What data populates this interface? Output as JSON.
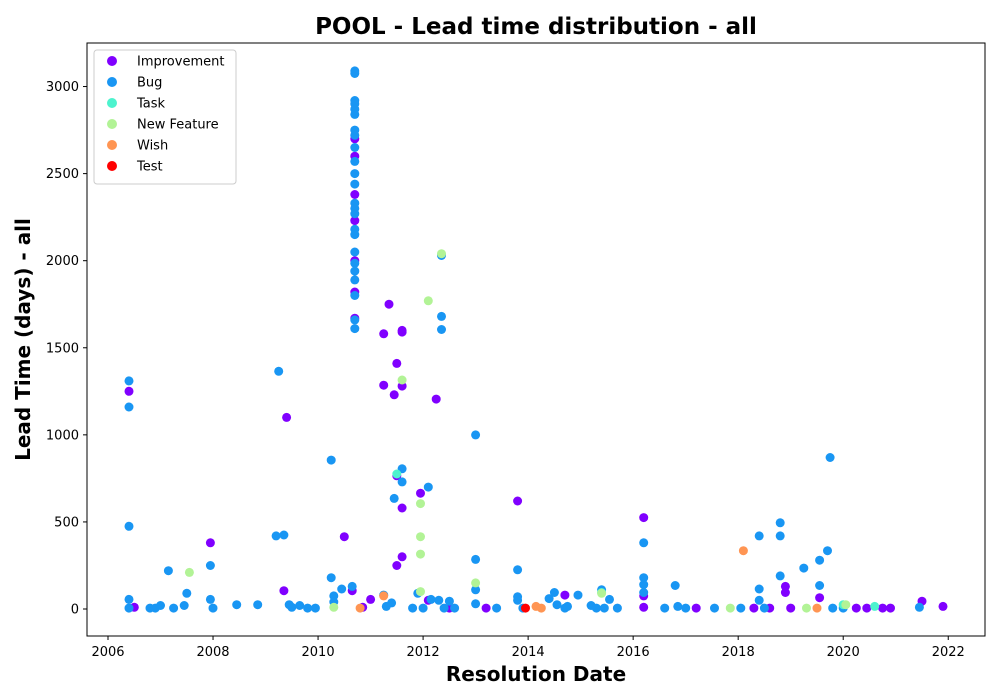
{
  "chart_data": {
    "type": "scatter",
    "title": "POOL - Lead time distribution - all",
    "xlabel": "Resolution Date",
    "ylabel": "Lead Time (days) - all",
    "xlim": [
      2005.6,
      2022.7
    ],
    "ylim": [
      -155,
      3250
    ],
    "x_ticks": [
      "2006",
      "2008",
      "2010",
      "2012",
      "2014",
      "2016",
      "2018",
      "2020",
      "2022"
    ],
    "y_ticks": [
      "0",
      "500",
      "1000",
      "1500",
      "2000",
      "2500",
      "3000"
    ],
    "legend_position": "top-left",
    "grid": false,
    "series": [
      {
        "name": "Improvement",
        "color": "#8000ff",
        "points": [
          [
            2006.4,
            1250
          ],
          [
            2006.5,
            10
          ],
          [
            2007.95,
            380
          ],
          [
            2009.35,
            105
          ],
          [
            2009.4,
            1100
          ],
          [
            2010.5,
            415
          ],
          [
            2010.65,
            105
          ],
          [
            2010.7,
            2700
          ],
          [
            2010.7,
            2600
          ],
          [
            2010.7,
            2380
          ],
          [
            2010.7,
            2230
          ],
          [
            2010.7,
            2000
          ],
          [
            2010.7,
            1820
          ],
          [
            2010.7,
            1670
          ],
          [
            2010.85,
            10
          ],
          [
            2011.0,
            55
          ],
          [
            2011.25,
            1580
          ],
          [
            2011.25,
            1285
          ],
          [
            2011.35,
            1750
          ],
          [
            2011.45,
            1230
          ],
          [
            2011.5,
            765
          ],
          [
            2011.5,
            1410
          ],
          [
            2011.5,
            250
          ],
          [
            2011.6,
            1590
          ],
          [
            2011.6,
            1600
          ],
          [
            2011.6,
            1280
          ],
          [
            2011.6,
            300
          ],
          [
            2011.6,
            580
          ],
          [
            2011.95,
            665
          ],
          [
            2012.1,
            50
          ],
          [
            2012.25,
            1205
          ],
          [
            2012.5,
            5
          ],
          [
            2013.2,
            5
          ],
          [
            2013.8,
            620
          ],
          [
            2014.7,
            80
          ],
          [
            2016.2,
            525
          ],
          [
            2016.2,
            75
          ],
          [
            2016.2,
            10
          ],
          [
            2017.2,
            5
          ],
          [
            2018.3,
            5
          ],
          [
            2018.6,
            5
          ],
          [
            2018.9,
            130
          ],
          [
            2018.9,
            95
          ],
          [
            2019.0,
            5
          ],
          [
            2019.55,
            65
          ],
          [
            2020.25,
            5
          ],
          [
            2020.45,
            5
          ],
          [
            2020.75,
            5
          ],
          [
            2020.9,
            5
          ],
          [
            2021.5,
            45
          ],
          [
            2021.9,
            15
          ]
        ]
      },
      {
        "name": "Bug",
        "color": "#1996f3",
        "points": [
          [
            2006.4,
            1310
          ],
          [
            2006.4,
            1160
          ],
          [
            2006.4,
            475
          ],
          [
            2006.4,
            55
          ],
          [
            2006.4,
            5
          ],
          [
            2006.8,
            5
          ],
          [
            2006.9,
            5
          ],
          [
            2007.0,
            20
          ],
          [
            2007.15,
            220
          ],
          [
            2007.25,
            5
          ],
          [
            2007.45,
            20
          ],
          [
            2007.5,
            90
          ],
          [
            2007.95,
            250
          ],
          [
            2007.95,
            55
          ],
          [
            2008.0,
            5
          ],
          [
            2008.45,
            25
          ],
          [
            2008.85,
            25
          ],
          [
            2009.2,
            420
          ],
          [
            2009.25,
            1365
          ],
          [
            2009.35,
            425
          ],
          [
            2009.45,
            25
          ],
          [
            2009.5,
            10
          ],
          [
            2009.65,
            20
          ],
          [
            2009.8,
            5
          ],
          [
            2009.95,
            5
          ],
          [
            2010.25,
            855
          ],
          [
            2010.25,
            180
          ],
          [
            2010.3,
            75
          ],
          [
            2010.3,
            40
          ],
          [
            2010.45,
            115
          ],
          [
            2010.65,
            130
          ],
          [
            2010.7,
            3090
          ],
          [
            2010.7,
            3075
          ],
          [
            2010.7,
            2920
          ],
          [
            2010.7,
            2900
          ],
          [
            2010.7,
            2870
          ],
          [
            2010.7,
            2840
          ],
          [
            2010.7,
            2750
          ],
          [
            2010.7,
            2720
          ],
          [
            2010.7,
            2650
          ],
          [
            2010.7,
            2570
          ],
          [
            2010.7,
            2500
          ],
          [
            2010.7,
            2440
          ],
          [
            2010.7,
            2330
          ],
          [
            2010.7,
            2300
          ],
          [
            2010.7,
            2270
          ],
          [
            2010.7,
            2180
          ],
          [
            2010.7,
            2150
          ],
          [
            2010.7,
            2050
          ],
          [
            2010.7,
            1985
          ],
          [
            2010.7,
            1940
          ],
          [
            2010.7,
            1890
          ],
          [
            2010.7,
            1800
          ],
          [
            2010.7,
            1660
          ],
          [
            2010.7,
            1610
          ],
          [
            2011.25,
            80
          ],
          [
            2011.3,
            15
          ],
          [
            2011.4,
            35
          ],
          [
            2011.45,
            635
          ],
          [
            2011.6,
            805
          ],
          [
            2011.6,
            730
          ],
          [
            2011.8,
            5
          ],
          [
            2011.9,
            90
          ],
          [
            2012.0,
            5
          ],
          [
            2012.1,
            700
          ],
          [
            2012.15,
            55
          ],
          [
            2012.3,
            50
          ],
          [
            2012.35,
            2030
          ],
          [
            2012.35,
            1680
          ],
          [
            2012.35,
            1605
          ],
          [
            2012.4,
            5
          ],
          [
            2012.5,
            45
          ],
          [
            2012.6,
            5
          ],
          [
            2013.0,
            1000
          ],
          [
            2013.0,
            285
          ],
          [
            2013.0,
            110
          ],
          [
            2013.0,
            30
          ],
          [
            2013.4,
            5
          ],
          [
            2013.8,
            225
          ],
          [
            2013.8,
            70
          ],
          [
            2013.8,
            50
          ],
          [
            2013.9,
            5
          ],
          [
            2014.4,
            60
          ],
          [
            2014.5,
            95
          ],
          [
            2014.55,
            25
          ],
          [
            2014.7,
            5
          ],
          [
            2014.75,
            15
          ],
          [
            2014.95,
            80
          ],
          [
            2015.2,
            20
          ],
          [
            2015.3,
            5
          ],
          [
            2015.4,
            110
          ],
          [
            2015.45,
            5
          ],
          [
            2015.55,
            55
          ],
          [
            2015.7,
            5
          ],
          [
            2016.2,
            380
          ],
          [
            2016.2,
            180
          ],
          [
            2016.2,
            140
          ],
          [
            2016.2,
            95
          ],
          [
            2016.6,
            5
          ],
          [
            2016.8,
            135
          ],
          [
            2016.85,
            15
          ],
          [
            2017.0,
            5
          ],
          [
            2017.55,
            5
          ],
          [
            2018.05,
            5
          ],
          [
            2018.4,
            420
          ],
          [
            2018.4,
            115
          ],
          [
            2018.4,
            50
          ],
          [
            2018.5,
            5
          ],
          [
            2018.8,
            495
          ],
          [
            2018.8,
            420
          ],
          [
            2018.8,
            190
          ],
          [
            2019.25,
            235
          ],
          [
            2019.55,
            280
          ],
          [
            2019.55,
            135
          ],
          [
            2019.7,
            335
          ],
          [
            2019.75,
            870
          ],
          [
            2019.8,
            5
          ],
          [
            2020.0,
            5
          ],
          [
            2021.45,
            10
          ]
        ]
      },
      {
        "name": "Task",
        "color": "#4df3ce",
        "points": [
          [
            2011.5,
            775
          ],
          [
            2015.4,
            95
          ],
          [
            2020.0,
            25
          ],
          [
            2020.6,
            15
          ]
        ]
      },
      {
        "name": "New Feature",
        "color": "#b2f396",
        "points": [
          [
            2007.55,
            210
          ],
          [
            2010.3,
            10
          ],
          [
            2011.6,
            1315
          ],
          [
            2011.95,
            605
          ],
          [
            2011.95,
            415
          ],
          [
            2011.95,
            315
          ],
          [
            2011.95,
            100
          ],
          [
            2012.1,
            1770
          ],
          [
            2012.35,
            2040
          ],
          [
            2013.0,
            150
          ],
          [
            2015.4,
            90
          ],
          [
            2017.85,
            5
          ],
          [
            2019.3,
            5
          ],
          [
            2020.05,
            25
          ]
        ]
      },
      {
        "name": "Wish",
        "color": "#ff9553",
        "points": [
          [
            2010.8,
            5
          ],
          [
            2011.25,
            75
          ],
          [
            2014.25,
            5
          ],
          [
            2014.15,
            15
          ],
          [
            2018.1,
            335
          ],
          [
            2019.5,
            5
          ]
        ]
      },
      {
        "name": "Test",
        "color": "#ff0000",
        "points": [
          [
            2013.95,
            5
          ]
        ]
      }
    ]
  }
}
